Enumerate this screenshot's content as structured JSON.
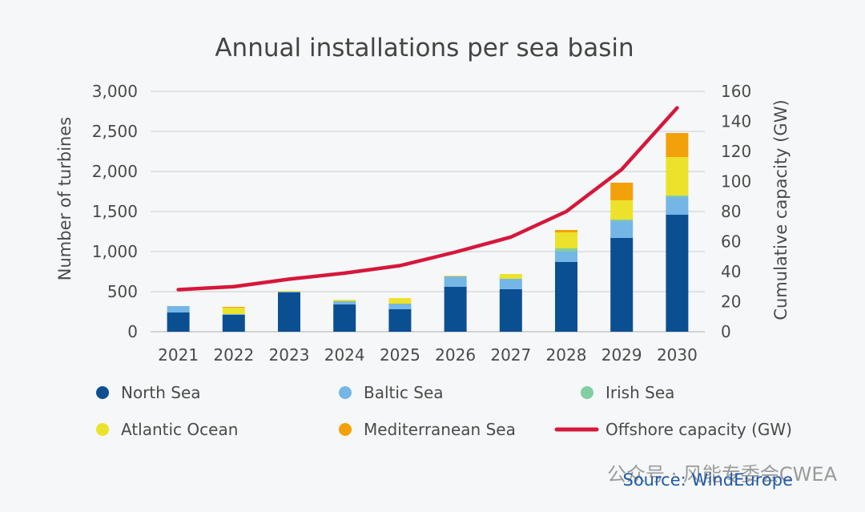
{
  "chart_data": {
    "type": "bar",
    "title": "Annual installations per sea basin",
    "ylabel_left": "Number of turbines",
    "ylabel_right": "Cumulative capacity (GW)",
    "categories": [
      "2021",
      "2022",
      "2023",
      "2024",
      "2025",
      "2026",
      "2027",
      "2028",
      "2029",
      "2030"
    ],
    "y_left_lim": [
      0,
      3000
    ],
    "y_left_ticks": [
      "0",
      "500",
      "1,000",
      "1,500",
      "2,000",
      "2,500",
      "3,000"
    ],
    "y_right_lim": [
      0,
      160
    ],
    "y_right_ticks": [
      "0",
      "20",
      "40",
      "60",
      "80",
      "100",
      "120",
      "140",
      "160"
    ],
    "stacked": true,
    "grid": true,
    "series": [
      {
        "name": "North Sea",
        "color": "#0b4f93",
        "values": [
          240,
          210,
          490,
          340,
          280,
          560,
          530,
          870,
          1170,
          1460
        ]
      },
      {
        "name": "Baltic Sea",
        "color": "#74b6e6",
        "values": [
          80,
          10,
          10,
          40,
          70,
          130,
          130,
          130,
          210,
          220
        ]
      },
      {
        "name": "Irish Sea",
        "color": "#82cda2",
        "values": [
          0,
          0,
          0,
          0,
          0,
          0,
          0,
          40,
          20,
          20
        ]
      },
      {
        "name": "Atlantic Ocean",
        "color": "#ece22b",
        "values": [
          0,
          80,
          10,
          20,
          70,
          10,
          60,
          200,
          240,
          480
        ]
      },
      {
        "name": "Mediterranean Sea",
        "color": "#f3a10b",
        "values": [
          0,
          10,
          0,
          0,
          0,
          0,
          0,
          30,
          220,
          300
        ]
      }
    ],
    "line_series": {
      "name": "Offshore capacity (GW)",
      "color": "#d6173b",
      "axis": "right",
      "values": [
        28,
        30,
        35,
        39,
        44,
        53,
        63,
        80,
        108,
        149
      ]
    },
    "legend": "bottom",
    "source": "Source: WindEurope",
    "watermark": "公众号 · 风能专委会CWEA"
  }
}
